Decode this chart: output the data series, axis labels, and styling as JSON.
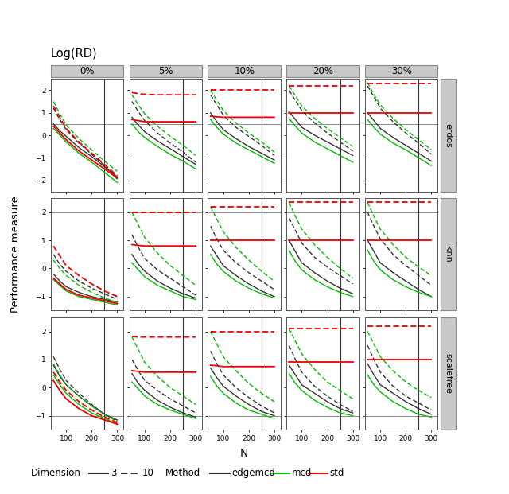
{
  "col_labels": [
    "0%",
    "5%",
    "10%",
    "20%",
    "30%"
  ],
  "row_labels": [
    "erdos",
    "knn",
    "scalefree"
  ],
  "title": "Log(RD)",
  "ylabel": "Performance measure",
  "xlabel": "N",
  "x": [
    50,
    75,
    100,
    150,
    200,
    250,
    300
  ],
  "ylims": {
    "erdos": [
      -2.5,
      2.5
    ],
    "knn": [
      -1.5,
      2.5
    ],
    "scalefree": [
      -1.5,
      2.5
    ]
  },
  "yticks": {
    "erdos": [
      -2,
      -1,
      0,
      1,
      2
    ],
    "knn": [
      -1,
      0,
      1,
      2
    ],
    "scalefree": [
      -1,
      0,
      1,
      2
    ]
  },
  "hlines": {
    "erdos": 0.5,
    "knn": 2.0,
    "scalefree": -1.0
  },
  "curves": {
    "erdos": {
      "0%": {
        "edgemcd_3": [
          0.5,
          0.2,
          -0.05,
          -0.55,
          -0.95,
          -1.4,
          -1.85
        ],
        "edgemcd_10": [
          1.2,
          0.7,
          0.25,
          -0.35,
          -0.85,
          -1.35,
          -1.95
        ],
        "mcd_3": [
          0.3,
          0.0,
          -0.3,
          -0.8,
          -1.2,
          -1.65,
          -2.1
        ],
        "mcd_10": [
          1.5,
          0.95,
          0.45,
          -0.15,
          -0.65,
          -1.15,
          -1.6
        ],
        "std_3": [
          0.4,
          0.1,
          -0.2,
          -0.7,
          -1.1,
          -1.5,
          -1.9
        ],
        "std_10": [
          1.3,
          0.8,
          0.3,
          -0.3,
          -0.8,
          -1.3,
          -1.8
        ]
      },
      "5%": {
        "edgemcd_3": [
          0.8,
          0.45,
          0.15,
          -0.25,
          -0.6,
          -0.95,
          -1.3
        ],
        "edgemcd_10": [
          1.5,
          1.05,
          0.65,
          0.1,
          -0.35,
          -0.75,
          -1.2
        ],
        "mcd_3": [
          0.5,
          0.15,
          -0.1,
          -0.5,
          -0.85,
          -1.15,
          -1.5
        ],
        "mcd_10": [
          1.8,
          1.35,
          0.95,
          0.4,
          -0.05,
          -0.45,
          -0.9
        ],
        "std_3": [
          0.7,
          0.65,
          0.6,
          0.6,
          0.6,
          0.6,
          0.6
        ],
        "std_10": [
          1.9,
          1.85,
          1.82,
          1.8,
          1.8,
          1.8,
          1.8
        ]
      },
      "10%": {
        "edgemcd_3": [
          1.0,
          0.6,
          0.25,
          -0.15,
          -0.5,
          -0.8,
          -1.1
        ],
        "edgemcd_10": [
          1.8,
          1.35,
          0.9,
          0.35,
          -0.05,
          -0.45,
          -0.9
        ],
        "mcd_3": [
          0.7,
          0.35,
          0.05,
          -0.35,
          -0.65,
          -0.95,
          -1.25
        ],
        "mcd_10": [
          2.0,
          1.55,
          1.1,
          0.55,
          0.1,
          -0.3,
          -0.75
        ],
        "std_3": [
          0.85,
          0.82,
          0.8,
          0.8,
          0.8,
          0.8,
          0.8
        ],
        "std_10": [
          2.0,
          2.0,
          2.0,
          2.0,
          2.0,
          2.0,
          2.0
        ]
      },
      "20%": {
        "edgemcd_3": [
          1.05,
          0.7,
          0.35,
          0.0,
          -0.3,
          -0.6,
          -0.9
        ],
        "edgemcd_10": [
          2.0,
          1.55,
          1.1,
          0.55,
          0.1,
          -0.3,
          -0.7
        ],
        "mcd_3": [
          0.75,
          0.4,
          0.1,
          -0.3,
          -0.6,
          -0.9,
          -1.2
        ],
        "mcd_10": [
          2.2,
          1.75,
          1.3,
          0.75,
          0.3,
          -0.1,
          -0.5
        ],
        "std_3": [
          1.0,
          1.0,
          1.0,
          1.0,
          1.0,
          1.0,
          1.0
        ],
        "std_10": [
          2.2,
          2.2,
          2.2,
          2.2,
          2.2,
          2.2,
          2.2
        ]
      },
      "30%": {
        "edgemcd_3": [
          1.0,
          0.65,
          0.3,
          -0.1,
          -0.45,
          -0.8,
          -1.15
        ],
        "edgemcd_10": [
          2.2,
          1.7,
          1.2,
          0.6,
          0.1,
          -0.35,
          -0.85
        ],
        "mcd_3": [
          0.7,
          0.35,
          0.05,
          -0.35,
          -0.65,
          -1.0,
          -1.35
        ],
        "mcd_10": [
          2.35,
          1.8,
          1.35,
          0.75,
          0.25,
          -0.2,
          -0.65
        ],
        "std_3": [
          1.0,
          1.0,
          1.0,
          1.0,
          1.0,
          1.0,
          1.0
        ],
        "std_10": [
          2.3,
          2.3,
          2.3,
          2.3,
          2.3,
          2.3,
          2.3
        ]
      }
    },
    "knn": {
      "0%": {
        "edgemcd_3": [
          -0.2,
          -0.45,
          -0.65,
          -0.85,
          -1.0,
          -1.1,
          -1.2
        ],
        "edgemcd_10": [
          0.5,
          0.15,
          -0.1,
          -0.45,
          -0.7,
          -0.9,
          -1.1
        ],
        "mcd_3": [
          -0.4,
          -0.6,
          -0.8,
          -1.0,
          -1.1,
          -1.2,
          -1.3
        ],
        "mcd_10": [
          0.3,
          0.0,
          -0.25,
          -0.6,
          -0.85,
          -1.05,
          -1.2
        ],
        "std_3": [
          -0.35,
          -0.55,
          -0.75,
          -0.95,
          -1.05,
          -1.15,
          -1.25
        ],
        "std_10": [
          0.8,
          0.45,
          0.1,
          -0.25,
          -0.55,
          -0.8,
          -1.0
        ]
      },
      "5%": {
        "edgemcd_3": [
          0.5,
          0.15,
          -0.1,
          -0.45,
          -0.7,
          -0.9,
          -1.05
        ],
        "edgemcd_10": [
          1.2,
          0.75,
          0.35,
          -0.05,
          -0.35,
          -0.65,
          -0.95
        ],
        "mcd_3": [
          0.2,
          -0.05,
          -0.3,
          -0.6,
          -0.8,
          -1.0,
          -1.1
        ],
        "mcd_10": [
          2.0,
          1.55,
          1.1,
          0.55,
          0.1,
          -0.25,
          -0.6
        ],
        "std_3": [
          0.85,
          0.82,
          0.8,
          0.8,
          0.8,
          0.8,
          0.8
        ],
        "std_10": [
          2.0,
          2.0,
          2.0,
          2.0,
          2.0,
          2.0,
          2.0
        ]
      },
      "10%": {
        "edgemcd_3": [
          0.8,
          0.45,
          0.1,
          -0.25,
          -0.55,
          -0.8,
          -1.0
        ],
        "edgemcd_10": [
          1.5,
          1.05,
          0.65,
          0.2,
          -0.15,
          -0.45,
          -0.75
        ],
        "mcd_3": [
          0.5,
          0.15,
          -0.1,
          -0.45,
          -0.7,
          -0.9,
          -1.05
        ],
        "mcd_10": [
          2.2,
          1.75,
          1.3,
          0.75,
          0.3,
          -0.1,
          -0.45
        ],
        "std_3": [
          1.0,
          1.0,
          1.0,
          1.0,
          1.0,
          1.0,
          1.0
        ],
        "std_10": [
          2.2,
          2.2,
          2.2,
          2.2,
          2.2,
          2.2,
          2.2
        ]
      },
      "20%": {
        "edgemcd_3": [
          1.0,
          0.6,
          0.2,
          -0.15,
          -0.45,
          -0.7,
          -0.9
        ],
        "edgemcd_10": [
          1.8,
          1.35,
          0.9,
          0.4,
          0.05,
          -0.25,
          -0.55
        ],
        "mcd_3": [
          0.65,
          0.25,
          -0.05,
          -0.4,
          -0.65,
          -0.85,
          -1.0
        ],
        "mcd_10": [
          2.35,
          1.85,
          1.4,
          0.85,
          0.4,
          0.0,
          -0.35
        ],
        "std_3": [
          1.0,
          1.0,
          1.0,
          1.0,
          1.0,
          1.0,
          1.0
        ],
        "std_10": [
          2.35,
          2.35,
          2.35,
          2.35,
          2.35,
          2.35,
          2.35
        ]
      },
      "30%": {
        "edgemcd_3": [
          1.0,
          0.6,
          0.2,
          -0.15,
          -0.45,
          -0.75,
          -1.0
        ],
        "edgemcd_10": [
          2.0,
          1.5,
          1.05,
          0.5,
          0.1,
          -0.25,
          -0.6
        ],
        "mcd_3": [
          0.65,
          0.25,
          -0.05,
          -0.4,
          -0.65,
          -0.85,
          -1.0
        ],
        "mcd_10": [
          2.35,
          1.85,
          1.4,
          0.85,
          0.4,
          0.05,
          -0.25
        ],
        "std_3": [
          1.0,
          1.0,
          1.0,
          1.0,
          1.0,
          1.0,
          1.0
        ],
        "std_10": [
          2.35,
          2.35,
          2.35,
          2.35,
          2.35,
          2.35,
          2.35
        ]
      }
    },
    "scalefree": {
      "0%": {
        "edgemcd_3": [
          0.8,
          0.4,
          0.1,
          -0.3,
          -0.65,
          -0.95,
          -1.15
        ],
        "edgemcd_10": [
          1.1,
          0.65,
          0.25,
          -0.2,
          -0.6,
          -0.95,
          -1.2
        ],
        "mcd_3": [
          0.45,
          0.1,
          -0.2,
          -0.6,
          -0.9,
          -1.1,
          -1.3
        ],
        "mcd_10": [
          0.85,
          0.45,
          0.1,
          -0.3,
          -0.65,
          -0.95,
          -1.2
        ],
        "std_3": [
          0.25,
          -0.1,
          -0.4,
          -0.75,
          -1.0,
          -1.15,
          -1.3
        ],
        "std_10": [
          0.55,
          0.2,
          -0.1,
          -0.5,
          -0.8,
          -1.05,
          -1.25
        ]
      },
      "5%": {
        "edgemcd_3": [
          0.5,
          0.15,
          -0.1,
          -0.45,
          -0.7,
          -0.9,
          -1.05
        ],
        "edgemcd_10": [
          1.0,
          0.6,
          0.25,
          -0.1,
          -0.4,
          -0.65,
          -0.9
        ],
        "mcd_3": [
          0.2,
          -0.05,
          -0.3,
          -0.6,
          -0.8,
          -0.95,
          -1.1
        ],
        "mcd_10": [
          1.8,
          1.35,
          0.9,
          0.4,
          0.0,
          -0.3,
          -0.6
        ],
        "std_3": [
          0.6,
          0.58,
          0.55,
          0.55,
          0.55,
          0.55,
          0.55
        ],
        "std_10": [
          1.82,
          1.8,
          1.8,
          1.8,
          1.8,
          1.8,
          1.8
        ]
      },
      "10%": {
        "edgemcd_3": [
          0.7,
          0.35,
          0.05,
          -0.3,
          -0.6,
          -0.85,
          -1.0
        ],
        "edgemcd_10": [
          1.3,
          0.85,
          0.45,
          0.0,
          -0.35,
          -0.65,
          -0.9
        ],
        "mcd_3": [
          0.4,
          0.05,
          -0.2,
          -0.55,
          -0.8,
          -0.95,
          -1.1
        ],
        "mcd_10": [
          2.0,
          1.55,
          1.1,
          0.6,
          0.15,
          -0.2,
          -0.5
        ],
        "std_3": [
          0.8,
          0.78,
          0.75,
          0.75,
          0.75,
          0.75,
          0.75
        ],
        "std_10": [
          2.0,
          2.0,
          2.0,
          2.0,
          2.0,
          2.0,
          2.0
        ]
      },
      "20%": {
        "edgemcd_3": [
          0.8,
          0.45,
          0.1,
          -0.2,
          -0.5,
          -0.75,
          -0.9
        ],
        "edgemcd_10": [
          1.5,
          1.0,
          0.55,
          0.05,
          -0.3,
          -0.6,
          -0.85
        ],
        "mcd_3": [
          0.5,
          0.15,
          -0.1,
          -0.45,
          -0.7,
          -0.9,
          -1.0
        ],
        "mcd_10": [
          2.1,
          1.65,
          1.2,
          0.65,
          0.2,
          -0.1,
          -0.4
        ],
        "std_3": [
          0.9,
          0.9,
          0.9,
          0.9,
          0.9,
          0.9,
          0.9
        ],
        "std_10": [
          2.1,
          2.1,
          2.1,
          2.1,
          2.1,
          2.1,
          2.1
        ]
      },
      "30%": {
        "edgemcd_3": [
          0.85,
          0.45,
          0.1,
          -0.2,
          -0.5,
          -0.75,
          -0.95
        ],
        "edgemcd_10": [
          1.5,
          1.0,
          0.55,
          0.05,
          -0.3,
          -0.55,
          -0.8
        ],
        "mcd_3": [
          0.45,
          0.1,
          -0.15,
          -0.5,
          -0.75,
          -0.95,
          -1.05
        ],
        "mcd_10": [
          2.0,
          1.55,
          1.1,
          0.6,
          0.2,
          -0.1,
          -0.35
        ],
        "std_3": [
          1.0,
          1.0,
          1.0,
          1.0,
          1.0,
          1.0,
          1.0
        ],
        "std_10": [
          2.2,
          2.2,
          2.2,
          2.2,
          2.2,
          2.2,
          2.2
        ]
      }
    }
  },
  "colors": {
    "edgemcd": "#333333",
    "mcd": "#00bb00",
    "std": "#ee0000"
  },
  "strip_color": "#c8c8c8",
  "strip_edge": "#888888"
}
